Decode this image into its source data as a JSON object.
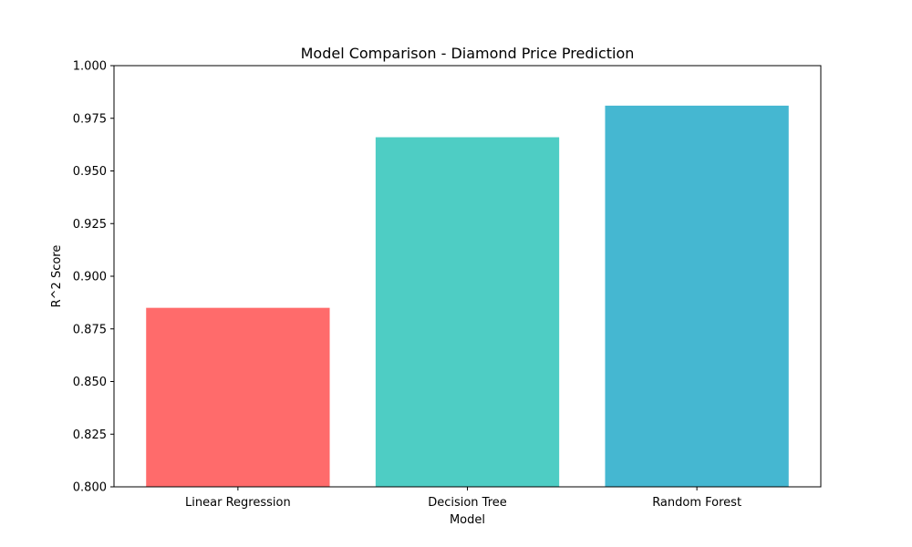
{
  "chart_data": {
    "type": "bar",
    "title": "Model Comparison - Diamond Price Prediction",
    "xlabel": "Model",
    "ylabel": "R^2 Score",
    "categories": [
      "Linear Regression",
      "Decision Tree",
      "Random Forest"
    ],
    "values": [
      0.885,
      0.966,
      0.981
    ],
    "colors": [
      "#FF6B6B",
      "#4ECDC4",
      "#45B7D1"
    ],
    "ylim": [
      0.8,
      1.0
    ],
    "yticks": [
      0.8,
      0.825,
      0.85,
      0.875,
      0.9,
      0.925,
      0.95,
      0.975,
      1.0
    ],
    "ytick_labels": [
      "0.800",
      "0.825",
      "0.850",
      "0.875",
      "0.900",
      "0.925",
      "0.950",
      "0.975",
      "1.000"
    ],
    "grid": false,
    "legend": "none"
  }
}
